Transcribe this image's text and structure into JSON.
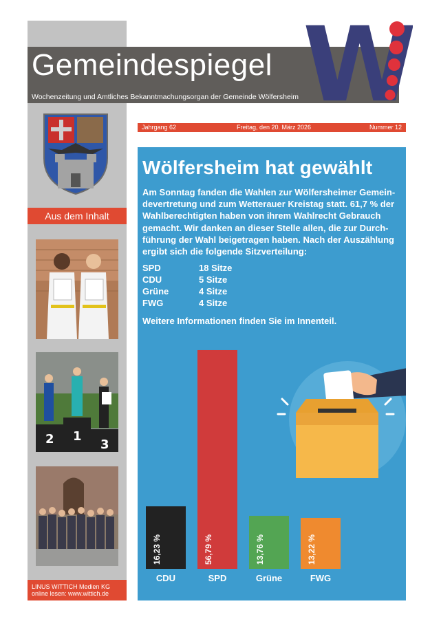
{
  "masthead": {
    "title": "Gemeindespiegel",
    "subtitle": "Wochenzeitung und Amtliches Bekanntmachungsorgan der Gemeinde Wölfersheim",
    "logo_letter": "W",
    "colors": {
      "band": "#605d5a",
      "accent": "#e04a32",
      "logo_blue": "#3a3f7a",
      "logo_red": "#e0323c"
    }
  },
  "issue": {
    "jahrgang": "Jahrgang 62",
    "date": "Freitag, den 20. März 2026",
    "number": "Nummer 12"
  },
  "sidebar": {
    "inhalt_label": "Aus dem Inhalt",
    "photos": [
      "judo-children-photo",
      "podium-runners-photo",
      "group-photo"
    ],
    "footer_line1": "LINUS WITTICH Medien KG",
    "footer_line2": "online lesen: www.wittich.de"
  },
  "article": {
    "headline": "Wölfersheim hat gewählt",
    "body": "Am Sonntag fanden die Wahlen zur Wölfersheimer Gemein-devertretung und zum Wetterauer Kreistag statt. 61,7 % der Wahlberechtigten haben von ihrem Wahlrecht Gebrauch gemacht. Wir danken an dieser Stelle allen, die zur Durch-führung der Wahl beigetragen haben. Nach der Auszählung ergibt sich die folgende Sitzverteilung:",
    "seats": [
      {
        "party": "SPD",
        "value": "18 Sitze"
      },
      {
        "party": "CDU",
        "value": "5 Sitze"
      },
      {
        "party": "Grüne",
        "value": "4 Sitze"
      },
      {
        "party": "FWG",
        "value": "4 Sitze"
      }
    ],
    "more_info": "Weitere Informationen finden Sie im Innenteil.",
    "panel_color": "#3d9ccf"
  },
  "chart_data": {
    "type": "bar",
    "categories": [
      "CDU",
      "SPD",
      "Grüne",
      "FWG"
    ],
    "values": [
      16.23,
      56.79,
      13.76,
      13.22
    ],
    "value_labels": [
      "16,23 %",
      "56,79 %",
      "13,76 %",
      "13,22 %"
    ],
    "colors": [
      "#222222",
      "#d03b3b",
      "#53a553",
      "#ef8a2f"
    ],
    "ylim": [
      0,
      60
    ]
  }
}
